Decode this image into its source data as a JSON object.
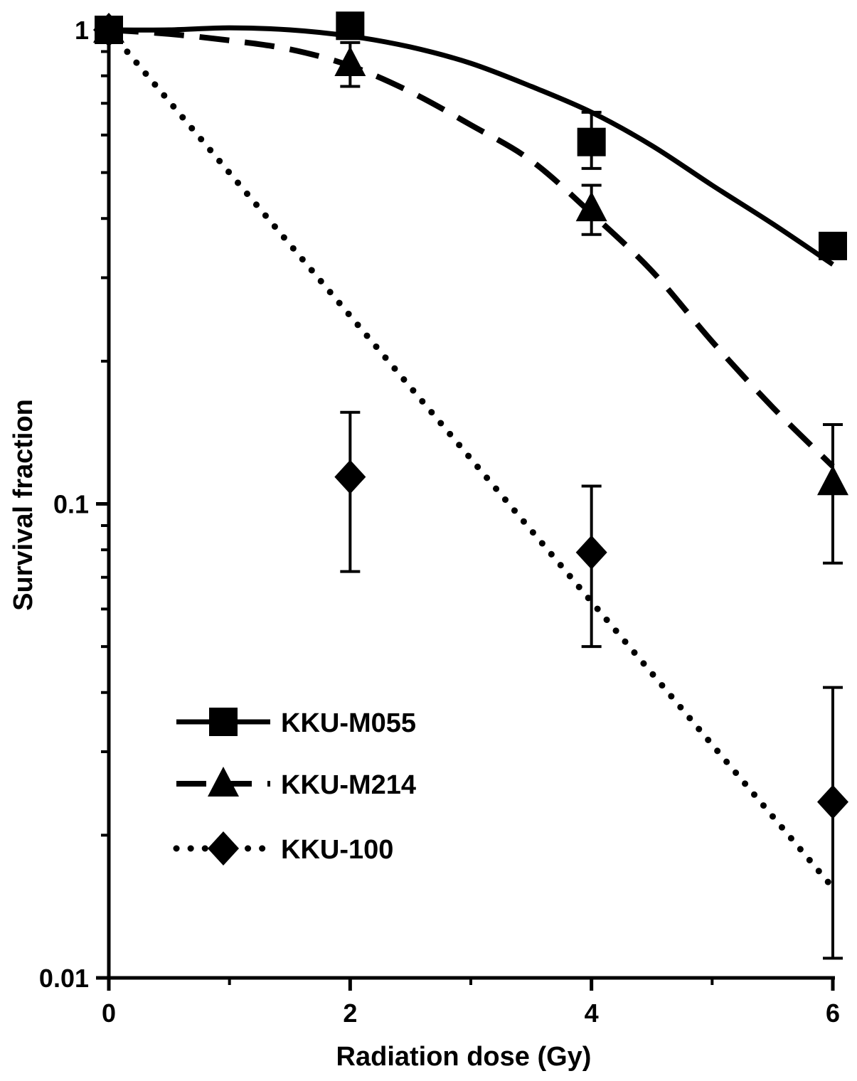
{
  "chart_data": {
    "type": "scatter",
    "title": "",
    "xlabel": "Radiation dose (Gy)",
    "ylabel": "Survival fraction",
    "x_scale": "linear",
    "y_scale": "log",
    "xlim": [
      0,
      6
    ],
    "ylim": [
      0.01,
      1
    ],
    "x_ticks": [
      0,
      2,
      4,
      6
    ],
    "x_tick_labels": [
      "0",
      "2",
      "4",
      "6"
    ],
    "y_ticks": [
      0.01,
      0.1,
      1
    ],
    "y_tick_labels": [
      "0.01",
      "0.1",
      "1"
    ],
    "grid": false,
    "legend_position": "lower-left",
    "series": [
      {
        "name": "KKU-M055",
        "marker": "square",
        "line_style": "solid",
        "x": [
          0,
          2,
          4,
          6
        ],
        "y": [
          1.0,
          1.02,
          0.58,
          0.35
        ],
        "error": [
          [
            1.0,
            1.0
          ],
          [
            1.02,
            1.02
          ],
          [
            0.51,
            0.67
          ],
          [
            0.35,
            0.35
          ]
        ],
        "fit_x": [
          0,
          0.5,
          1,
          1.5,
          2,
          2.5,
          3,
          3.5,
          4,
          4.5,
          5,
          5.5,
          6
        ],
        "fit_y": [
          1.0,
          1.0,
          1.01,
          1.0,
          0.97,
          0.92,
          0.85,
          0.76,
          0.67,
          0.57,
          0.47,
          0.39,
          0.32
        ]
      },
      {
        "name": "KKU-M214",
        "marker": "triangle",
        "line_style": "dashed",
        "x": [
          0,
          2,
          4,
          6
        ],
        "y": [
          1.0,
          0.85,
          0.42,
          0.111
        ],
        "error": [
          [
            0.97,
            1.03
          ],
          [
            0.76,
            0.94
          ],
          [
            0.37,
            0.47
          ],
          [
            0.075,
            0.147
          ]
        ],
        "fit_x": [
          0,
          0.5,
          1,
          1.5,
          2,
          2.5,
          3,
          3.5,
          4,
          4.5,
          5,
          5.5,
          6
        ],
        "fit_y": [
          1.0,
          0.98,
          0.95,
          0.91,
          0.84,
          0.74,
          0.63,
          0.53,
          0.41,
          0.31,
          0.22,
          0.16,
          0.12
        ]
      },
      {
        "name": "KKU-100",
        "marker": "diamond",
        "line_style": "dotted",
        "x": [
          0,
          2,
          4,
          6
        ],
        "y": [
          1.0,
          0.114,
          0.079,
          0.0235
        ],
        "error": [
          [
            1.0,
            1.0
          ],
          [
            0.072,
            0.156
          ],
          [
            0.05,
            0.109
          ],
          [
            0.011,
            0.041
          ]
        ],
        "fit_x": [
          0,
          6
        ],
        "fit_y": [
          1.0,
          0.0155
        ]
      }
    ]
  }
}
